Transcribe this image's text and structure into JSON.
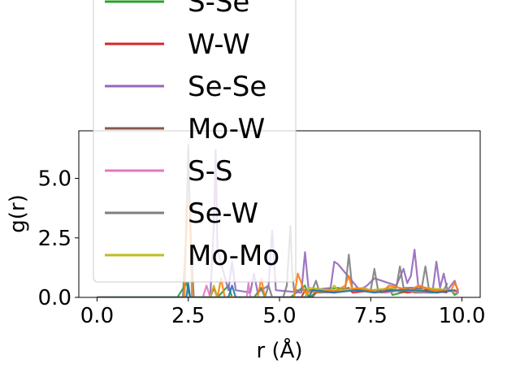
{
  "chart_data": {
    "type": "line",
    "title": "",
    "xlabel": "r (Å)",
    "ylabel": "g(r)",
    "xlim": [
      -0.5,
      10.5
    ],
    "ylim": [
      0,
      7.0
    ],
    "xticks": [
      {
        "value": 0.0,
        "label": "0.0"
      },
      {
        "value": 2.5,
        "label": "2.5"
      },
      {
        "value": 5.0,
        "label": "5.0"
      },
      {
        "value": 7.5,
        "label": "7.5"
      },
      {
        "value": 10.0,
        "label": "10.0"
      }
    ],
    "yticks": [
      {
        "value": 0.0,
        "label": "0.0"
      },
      {
        "value": 2.5,
        "label": "2.5"
      },
      {
        "value": 5.0,
        "label": "5.0"
      }
    ],
    "grid": false,
    "legend": "upper-left, overflowing above plot, partially cut off",
    "series": [
      {
        "name": "S-Se",
        "color": "#2ca02c",
        "x": [
          0,
          2.2,
          2.45,
          2.55,
          2.7,
          3.3,
          3.6,
          3.7,
          3.8,
          4.3,
          4.5,
          4.6,
          5.3,
          5.7,
          5.8,
          6.1,
          6.6,
          7.0,
          7.5,
          7.9,
          8.0,
          8.1,
          8.6,
          8.7,
          9.2,
          9.7,
          9.8,
          9.9
        ],
        "y": [
          0,
          0,
          0.6,
          0,
          0,
          0,
          0.5,
          0,
          0,
          0,
          0.4,
          0,
          0,
          0.5,
          0,
          0.3,
          0.4,
          0.3,
          0.3,
          0.2,
          0.4,
          0.1,
          0.3,
          0.2,
          0.2,
          0.3,
          0.1,
          0.2
        ]
      },
      {
        "name": "W-W",
        "color": "#d62728",
        "x": [
          0,
          3.1,
          3.2,
          3.3,
          5.6,
          5.7,
          6.5,
          6.9,
          7.0,
          7.6,
          7.8,
          8.1,
          8.5,
          9.0,
          9.3,
          9.8,
          9.9
        ],
        "y": [
          0,
          0,
          0.4,
          0,
          0,
          0.3,
          0.2,
          0.4,
          0.2,
          0.3,
          0.2,
          0.3,
          0.2,
          0.3,
          0.2,
          0.3,
          0.2
        ]
      },
      {
        "name": "Se-Se",
        "color": "#9467bd",
        "x": [
          0,
          3.1,
          3.2,
          3.25,
          3.3,
          3.6,
          3.7,
          3.8,
          4.2,
          4.3,
          4.4,
          4.7,
          4.8,
          4.9,
          5.6,
          5.7,
          5.8,
          6.4,
          6.5,
          6.6,
          7.2,
          7.4,
          7.6,
          8.2,
          8.4,
          8.5,
          8.6,
          8.7,
          8.8,
          9.2,
          9.3,
          9.4,
          9.5,
          9.6,
          9.8,
          9.9
        ],
        "y": [
          0,
          0,
          3.0,
          6.2,
          2.0,
          0.3,
          1.5,
          0.3,
          0.2,
          1.0,
          0.2,
          0.5,
          2.8,
          0.3,
          0.2,
          1.9,
          0.3,
          0.4,
          1.5,
          1.4,
          0.3,
          0.5,
          0.8,
          0.5,
          1.2,
          0.6,
          0.9,
          2.0,
          0.5,
          0.3,
          1.5,
          0.4,
          1.0,
          0.3,
          0.7,
          0.2
        ]
      },
      {
        "name": "Mo-W",
        "color": "#8c564b",
        "x": [
          0,
          5.9,
          6.0,
          6.8,
          7.2,
          7.6,
          8.2,
          8.6,
          9.1,
          9.6
        ],
        "y": [
          0,
          0,
          0.2,
          0.3,
          0.3,
          0.3,
          0.3,
          0.4,
          0.3,
          0.2
        ]
      },
      {
        "name": "S-S",
        "color": "#e377c2",
        "x": [
          0,
          2.9,
          3.0,
          3.1,
          4.1,
          4.15,
          4.2,
          5.7,
          5.8,
          6.3,
          6.8,
          7.3,
          7.9,
          8.4,
          9.0,
          9.5,
          9.9
        ],
        "y": [
          0,
          0,
          0.5,
          0,
          0,
          0.6,
          0,
          0,
          0.3,
          0.2,
          0.3,
          0.3,
          0.2,
          0.3,
          0.2,
          0.3,
          0.2
        ]
      },
      {
        "name": "Se-W",
        "color": "#7f7f7f",
        "x": [
          0,
          2.35,
          2.45,
          2.5,
          2.55,
          2.65,
          3.0,
          4.6,
          4.7,
          4.8,
          5.1,
          5.2,
          5.3,
          5.35,
          5.4,
          5.9,
          6.0,
          6.1,
          6.8,
          6.9,
          7.0,
          7.5,
          7.6,
          7.7,
          8.2,
          8.3,
          8.4,
          8.9,
          9.0,
          9.1,
          9.5,
          9.6
        ],
        "y": [
          0,
          0,
          2.8,
          6.4,
          3.0,
          0,
          0,
          0,
          0.5,
          0,
          0,
          0.5,
          3.0,
          1.0,
          0.3,
          0.3,
          0.7,
          0.2,
          0.3,
          1.8,
          0.3,
          0.3,
          1.2,
          0.3,
          0.4,
          1.3,
          0.4,
          0.4,
          1.3,
          0.3,
          0.3,
          0.6
        ]
      },
      {
        "name": "Mo-Mo",
        "color": "#bcbd22",
        "x": [
          0,
          3.1,
          3.2,
          3.3,
          5.7,
          5.8,
          6.4,
          6.5,
          6.6,
          7.3,
          7.5,
          8.1,
          8.2,
          8.9,
          9.0,
          9.7,
          9.8
        ],
        "y": [
          0,
          0,
          0.5,
          0,
          0,
          0.4,
          0.3,
          0.5,
          0.3,
          0.4,
          0.3,
          0.4,
          0.3,
          0.3,
          0.4,
          0.3,
          0.2
        ]
      },
      {
        "name": "",
        "color": "#ff7f0e",
        "x": [
          0,
          2.4,
          2.45,
          2.55,
          2.6,
          3.3,
          3.4,
          3.5,
          4.4,
          4.5,
          4.6,
          5.4,
          5.5,
          5.6,
          5.7,
          6.6,
          6.8,
          6.9,
          7.0,
          7.1,
          7.8,
          8.0,
          8.6,
          8.8,
          9.2,
          9.7,
          9.8,
          9.9
        ],
        "y": [
          0,
          0,
          3.8,
          3.9,
          0,
          0,
          0.8,
          0,
          0,
          0.8,
          0,
          0,
          1.0,
          0.6,
          0.2,
          0.3,
          0.5,
          0.9,
          0.3,
          0.4,
          0.2,
          0.5,
          0.3,
          0.5,
          0.3,
          0.3,
          0.6,
          0.3
        ]
      },
      {
        "name": "",
        "color": "#1f77b4",
        "x": [
          0,
          2.45,
          2.5,
          2.55,
          3.6,
          3.7,
          3.8,
          5.8,
          5.9,
          6.5,
          7.1,
          7.6,
          8.2,
          8.7,
          9.3,
          9.8
        ],
        "y": [
          0,
          0,
          0.6,
          0,
          0,
          0.5,
          0,
          0,
          0.3,
          0.2,
          0.3,
          0.2,
          0.3,
          0.3,
          0.2,
          0.3
        ]
      }
    ]
  }
}
